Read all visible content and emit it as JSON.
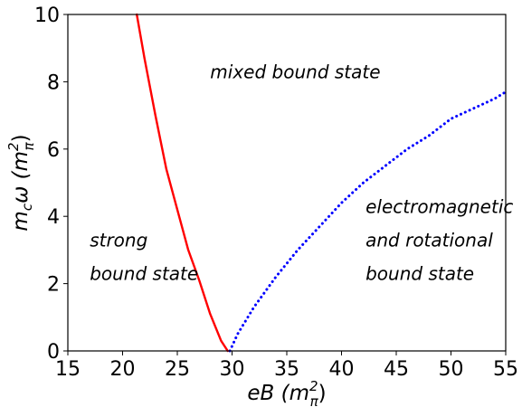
{
  "chart_data": {
    "type": "line",
    "title": "",
    "xlabel": "eB (mπ²)",
    "ylabel": "mᶜω (mπ²)",
    "xlim": [
      15,
      55
    ],
    "ylim": [
      0,
      10
    ],
    "xticks": [
      15,
      20,
      25,
      30,
      35,
      40,
      45,
      50,
      55
    ],
    "yticks": [
      0,
      2,
      4,
      6,
      8,
      10
    ],
    "grid": false,
    "legend": "none",
    "series": [
      {
        "color": "#ff0000",
        "style": "solid",
        "x": [
          21.3,
          22.0,
          23.0,
          24.0,
          25.0,
          26.0,
          27.0,
          28.0,
          29.0,
          29.6
        ],
        "y": [
          10.0,
          8.7,
          7.0,
          5.4,
          4.2,
          3.0,
          2.1,
          1.1,
          0.3,
          0.0
        ]
      },
      {
        "color": "#0000ff",
        "style": "dotted",
        "x": [
          29.8,
          30.5,
          32.0,
          34.0,
          36.0,
          38.0,
          40.0,
          42.0,
          44.0,
          46.0,
          48.0,
          50.0,
          52.0,
          54.0,
          55.0
        ],
        "y": [
          0.0,
          0.5,
          1.3,
          2.2,
          3.0,
          3.7,
          4.4,
          5.0,
          5.5,
          6.0,
          6.4,
          6.9,
          7.2,
          7.5,
          7.7
        ]
      }
    ],
    "annotations": [
      {
        "lines": [
          "mixed bound state"
        ],
        "x": 28.0,
        "y": 8.1
      },
      {
        "lines": [
          "strong",
          "bound state"
        ],
        "x": 17.0,
        "y": 3.1
      },
      {
        "lines": [
          "electromagnetic",
          "and rotational",
          "bound state"
        ],
        "x": 42.2,
        "y": 4.1
      }
    ]
  }
}
